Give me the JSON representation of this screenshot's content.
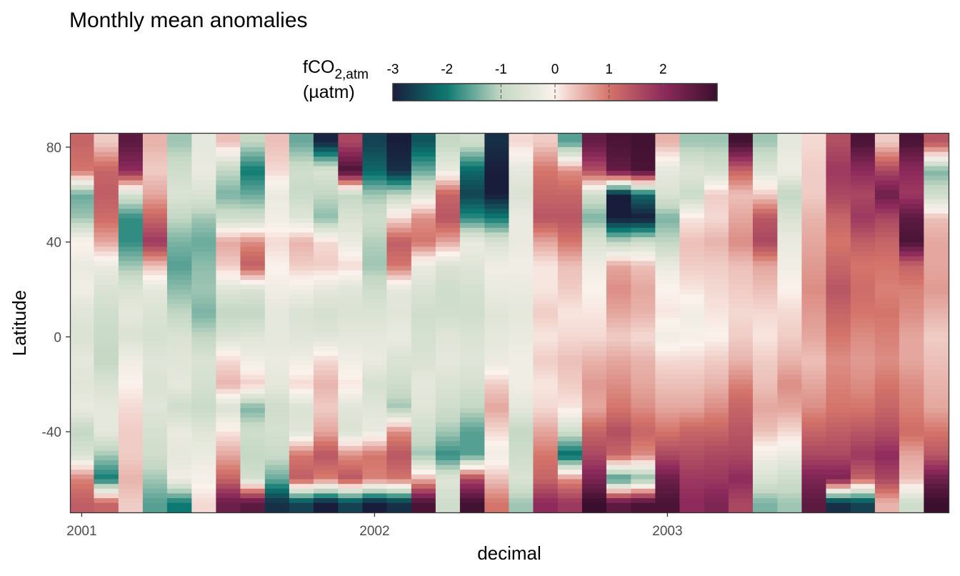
{
  "chart_data": {
    "type": "heatmap",
    "title": "Monthly mean anomalies",
    "xlabel": "decimal",
    "ylabel": "Latitude",
    "xlim": [
      2000.96,
      2003.96
    ],
    "ylim": [
      -74,
      86
    ],
    "x_ticks": [
      2001,
      2002,
      2003
    ],
    "x_tick_labels": [
      "2001",
      "2002",
      "2003"
    ],
    "y_ticks": [
      80,
      40,
      0,
      -40
    ],
    "y_tick_labels": [
      "80",
      "40",
      "0",
      "-40"
    ],
    "grid": false,
    "legend": {
      "title_main": "fCO",
      "title_sub": "2,atm",
      "title_unit": "(µatm)",
      "position": "top",
      "range": [
        -3,
        3
      ],
      "ticks": [
        -3,
        -2,
        -1,
        0,
        1,
        2
      ],
      "tick_labels": [
        "-3",
        "-2",
        "-1",
        "0",
        "1",
        "2"
      ],
      "colors": [
        "#191d3c",
        "#0c7a72",
        "#c4d8c4",
        "#fbf2ec",
        "#d4746a",
        "#8e2a5c",
        "#3a0f2e"
      ]
    },
    "month_x": [
      2001.0,
      2001.083,
      2001.167,
      2001.25,
      2001.333,
      2001.417,
      2001.5,
      2001.583,
      2001.667,
      2001.75,
      2001.833,
      2001.917,
      2002.0,
      2002.083,
      2002.167,
      2002.25,
      2002.333,
      2002.417,
      2002.5,
      2002.583,
      2002.667,
      2002.75,
      2002.833,
      2002.917,
      2003.0,
      2003.083,
      2003.167,
      2003.25,
      2003.333,
      2003.417,
      2003.5,
      2003.583,
      2003.667,
      2003.75,
      2003.833,
      2003.917
    ],
    "latitudes": [
      82,
      70,
      60,
      50,
      40,
      30,
      20,
      10,
      0,
      -10,
      -20,
      -30,
      -40,
      -50,
      -60,
      -70
    ],
    "anomalies": [
      [
        1.2,
        1.0,
        -1.5,
        -1.2,
        0.0,
        -0.3,
        -0.2,
        -0.5,
        -0.6,
        -0.4,
        -0.5,
        -0.3,
        -1.0,
        -0.6,
        0.9,
        1.3
      ],
      [
        0.3,
        1.2,
        1.3,
        1.1,
        0.6,
        -0.3,
        -0.6,
        -0.8,
        -0.9,
        -1.0,
        -0.6,
        -0.4,
        -0.4,
        -1.2,
        -2.0,
        1.2
      ],
      [
        2.6,
        2.0,
        -0.7,
        -1.8,
        -1.8,
        -1.2,
        -0.6,
        -0.4,
        -0.6,
        -0.2,
        0.0,
        0.2,
        0.3,
        0.3,
        0.5,
        0.3
      ],
      [
        0.5,
        0.3,
        0.6,
        1.2,
        1.8,
        0.4,
        -0.4,
        -0.6,
        -0.7,
        -0.5,
        -0.6,
        -0.5,
        -0.7,
        -0.8,
        -1.2,
        -1.6
      ],
      [
        -1.2,
        -0.8,
        -0.6,
        -1.0,
        -1.4,
        -1.6,
        -1.3,
        -1.0,
        -0.6,
        -0.5,
        -0.4,
        -0.8,
        -0.3,
        -0.4,
        -0.2,
        -2.0
      ],
      [
        -0.4,
        -0.3,
        -0.6,
        -1.2,
        -1.5,
        -1.3,
        -1.2,
        -1.4,
        -1.0,
        -0.6,
        -0.7,
        -0.9,
        -0.5,
        -0.3,
        -0.1,
        0.2
      ],
      [
        0.4,
        -1.0,
        -1.4,
        -0.8,
        0.6,
        0.3,
        -0.5,
        -1.0,
        -0.6,
        0.2,
        0.5,
        -0.6,
        0.1,
        0.6,
        1.2,
        2.4
      ],
      [
        -1.0,
        -2.0,
        -1.5,
        -0.8,
        0.8,
        1.3,
        -0.6,
        -1.0,
        -0.5,
        -0.2,
        0.3,
        -1.4,
        -0.8,
        -1.0,
        -0.7,
        2.6
      ],
      [
        0.4,
        0.2,
        -0.3,
        -0.2,
        0.2,
        0.0,
        -0.2,
        -0.4,
        -0.4,
        -0.3,
        -0.4,
        -0.8,
        -0.7,
        -0.9,
        -1.5,
        -2.8
      ],
      [
        -1.5,
        -0.8,
        -0.9,
        -0.5,
        0.5,
        0.3,
        -0.2,
        -0.6,
        -0.5,
        -0.2,
        0.2,
        -0.6,
        -0.5,
        1.0,
        1.3,
        -2.6
      ],
      [
        -2.9,
        -0.6,
        -1.0,
        -1.3,
        0.2,
        0.3,
        -0.4,
        -0.7,
        -0.5,
        0.2,
        0.5,
        0.3,
        0.6,
        1.4,
        0.9,
        -3.0
      ],
      [
        1.6,
        2.8,
        -1.0,
        -0.6,
        -0.3,
        0.2,
        -0.5,
        -0.6,
        -0.4,
        -0.2,
        0.1,
        -0.5,
        -0.6,
        0.8,
        1.4,
        -2.6
      ],
      [
        -2.6,
        -2.2,
        -1.2,
        -0.8,
        -1.1,
        -1.2,
        -0.8,
        -0.6,
        -0.4,
        -0.3,
        -0.7,
        -0.5,
        -0.3,
        1.0,
        0.9,
        -3.0
      ],
      [
        -3.0,
        -2.8,
        -1.0,
        0.2,
        1.3,
        1.0,
        -0.4,
        -0.5,
        -0.3,
        -0.6,
        -0.8,
        -1.2,
        0.8,
        1.4,
        1.0,
        -2.8
      ],
      [
        -2.4,
        -1.5,
        -0.5,
        0.8,
        1.0,
        -0.3,
        -0.6,
        -0.8,
        -0.7,
        -0.6,
        -0.4,
        -0.5,
        -0.8,
        -1.2,
        0.5,
        2.8
      ],
      [
        -1.0,
        -0.3,
        1.2,
        1.4,
        0.6,
        -0.6,
        -0.8,
        -0.8,
        -0.5,
        -0.4,
        -0.6,
        -0.8,
        -1.2,
        -1.8,
        -0.5,
        -0.8
      ],
      [
        -0.8,
        -2.2,
        -2.6,
        -1.8,
        -0.3,
        -0.5,
        -0.7,
        -0.8,
        -0.6,
        -0.5,
        -0.7,
        -1.0,
        -1.6,
        -1.6,
        1.6,
        2.9
      ],
      [
        -2.8,
        -3.0,
        -3.0,
        -2.0,
        -0.6,
        -0.2,
        -0.3,
        -0.5,
        -0.4,
        -0.3,
        0.3,
        0.6,
        0.2,
        -0.2,
        0.4,
        1.0
      ],
      [
        0.2,
        -0.4,
        -0.6,
        -0.3,
        -0.3,
        -0.2,
        -0.3,
        -0.4,
        -0.3,
        -0.2,
        -0.2,
        -0.4,
        -1.0,
        -0.8,
        -0.6,
        -1.2
      ],
      [
        0.3,
        1.0,
        1.2,
        1.4,
        0.6,
        0.1,
        0.1,
        0.3,
        0.1,
        0.3,
        0.1,
        0.2,
        0.6,
        1.0,
        1.2,
        2.0
      ],
      [
        -1.6,
        0.8,
        1.2,
        1.4,
        1.0,
        0.4,
        0.3,
        0.1,
        0.2,
        0.4,
        0.3,
        0.1,
        -0.8,
        -2.2,
        0.8,
        1.8
      ],
      [
        2.5,
        1.5,
        -0.8,
        -1.4,
        -0.6,
        -0.2,
        0.0,
        0.1,
        0.2,
        0.5,
        0.7,
        0.6,
        1.2,
        1.6,
        2.2,
        3.0
      ],
      [
        2.8,
        2.5,
        -3.0,
        -3.0,
        -1.0,
        0.6,
        0.8,
        0.6,
        0.3,
        0.6,
        0.8,
        1.0,
        1.5,
        1.2,
        -1.8,
        2.6
      ],
      [
        2.9,
        2.8,
        -2.2,
        -3.0,
        -0.8,
        0.4,
        0.6,
        0.5,
        0.2,
        0.5,
        0.6,
        0.8,
        1.2,
        0.8,
        -1.4,
        2.8
      ],
      [
        0.5,
        -0.4,
        -0.6,
        -1.4,
        -1.0,
        -0.3,
        0.0,
        0.1,
        -0.2,
        0.2,
        0.4,
        0.6,
        1.0,
        1.6,
        2.4,
        2.8
      ],
      [
        -1.2,
        -0.5,
        -0.9,
        0.1,
        0.4,
        0.3,
        0.1,
        -0.2,
        -0.1,
        0.2,
        0.4,
        0.6,
        1.2,
        1.5,
        1.8,
        2.0
      ],
      [
        -1.2,
        -0.7,
        0.3,
        0.2,
        0.5,
        0.3,
        0.2,
        0.1,
        0.0,
        0.3,
        0.5,
        0.8,
        1.2,
        1.6,
        1.8,
        2.2
      ],
      [
        2.9,
        1.2,
        0.4,
        0.6,
        0.8,
        0.4,
        0.3,
        0.2,
        0.3,
        0.5,
        0.9,
        1.2,
        1.4,
        1.6,
        2.0,
        1.6
      ],
      [
        -1.2,
        -0.5,
        0.3,
        1.4,
        1.6,
        0.6,
        0.4,
        0.2,
        0.1,
        0.3,
        0.4,
        0.6,
        0.4,
        -0.2,
        -0.6,
        -1.4
      ],
      [
        -0.4,
        -0.2,
        -1.0,
        -0.6,
        -0.3,
        -0.2,
        0.0,
        0.2,
        0.3,
        0.5,
        0.8,
        0.6,
        0.2,
        -0.3,
        -0.8,
        -1.2
      ],
      [
        0.2,
        0.3,
        0.3,
        0.5,
        0.6,
        0.7,
        0.8,
        0.7,
        0.6,
        0.4,
        0.6,
        0.8,
        1.2,
        1.6,
        2.2,
        2.6
      ],
      [
        1.5,
        1.8,
        1.6,
        1.2,
        1.0,
        1.2,
        1.4,
        1.2,
        1.0,
        0.8,
        0.9,
        1.0,
        1.3,
        1.6,
        2.2,
        -2.8
      ],
      [
        2.8,
        2.0,
        1.6,
        1.8,
        1.3,
        1.0,
        1.1,
        1.0,
        0.8,
        0.7,
        0.8,
        1.0,
        1.4,
        1.8,
        1.2,
        -2.6
      ],
      [
        0.3,
        1.6,
        2.4,
        1.6,
        1.2,
        1.0,
        0.9,
        1.0,
        0.9,
        0.8,
        1.0,
        1.2,
        1.5,
        2.0,
        1.6,
        0.5
      ],
      [
        2.8,
        2.0,
        1.8,
        2.6,
        2.8,
        1.2,
        0.9,
        0.8,
        0.6,
        0.6,
        0.8,
        0.9,
        1.1,
        0.6,
        0.4,
        -0.8
      ],
      [
        1.4,
        -1.4,
        -0.8,
        0.4,
        0.6,
        0.6,
        0.7,
        0.5,
        0.3,
        0.4,
        0.5,
        0.6,
        1.0,
        1.4,
        2.4,
        3.0
      ]
    ]
  }
}
